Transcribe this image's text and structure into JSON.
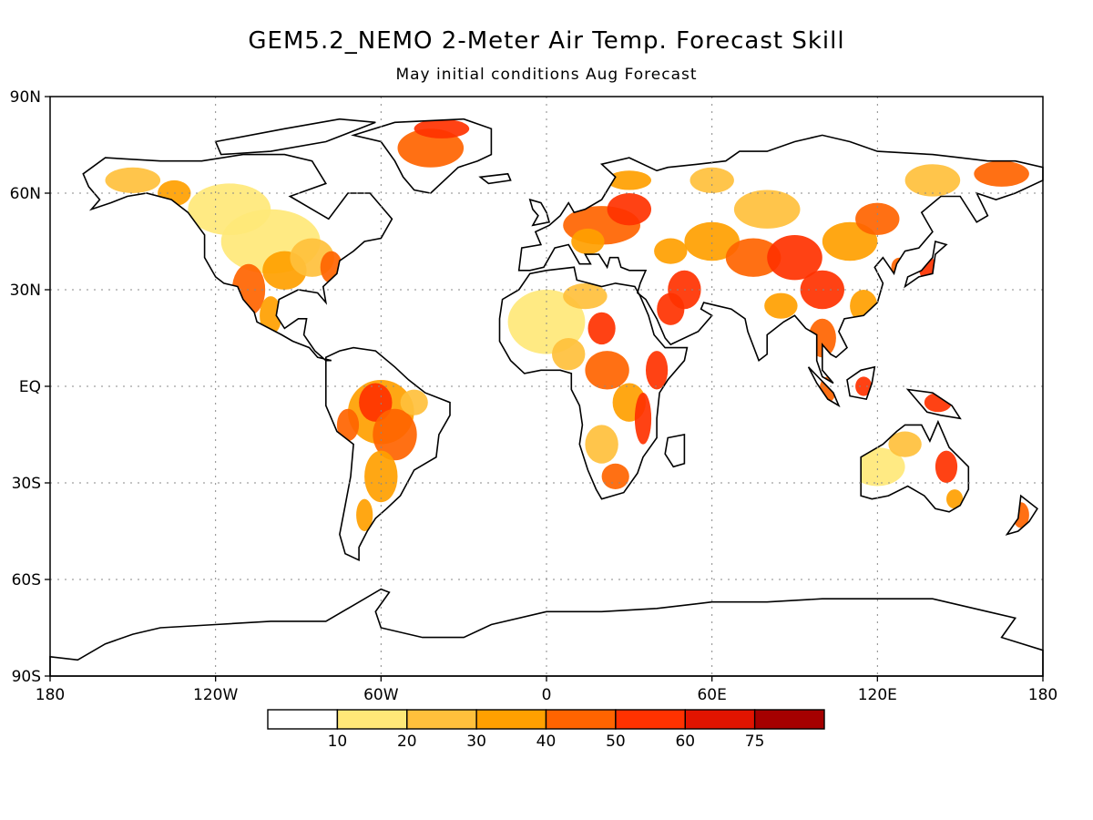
{
  "title": "GEM5.2_NEMO 2-Meter Air Temp. Forecast Skill",
  "subtitle": "May initial conditions  Aug Forecast",
  "y_ticks": [
    "90N",
    "60N",
    "30N",
    "EQ",
    "30S",
    "60S",
    "90S"
  ],
  "x_ticks": [
    "180",
    "120W",
    "60W",
    "0",
    "60E",
    "120E",
    "180"
  ],
  "colorbar": {
    "labels": [
      "10",
      "20",
      "30",
      "40",
      "50",
      "60",
      "75"
    ],
    "colors": [
      "#ffffff",
      "#ffe878",
      "#ffc03c",
      "#ffa000",
      "#ff6400",
      "#ff3200",
      "#e11400",
      "#a50000"
    ]
  },
  "chart_data": {
    "type": "heatmap",
    "title": "GEM5.2_NEMO 2-Meter Air Temp. Forecast Skill",
    "subtitle": "May initial conditions  Aug Forecast",
    "x_range": [
      -180,
      180
    ],
    "y_range": [
      -90,
      90
    ],
    "grid": true,
    "legend_placement": "bottom",
    "levels": [
      10,
      20,
      30,
      40,
      50,
      60,
      75
    ]
  }
}
